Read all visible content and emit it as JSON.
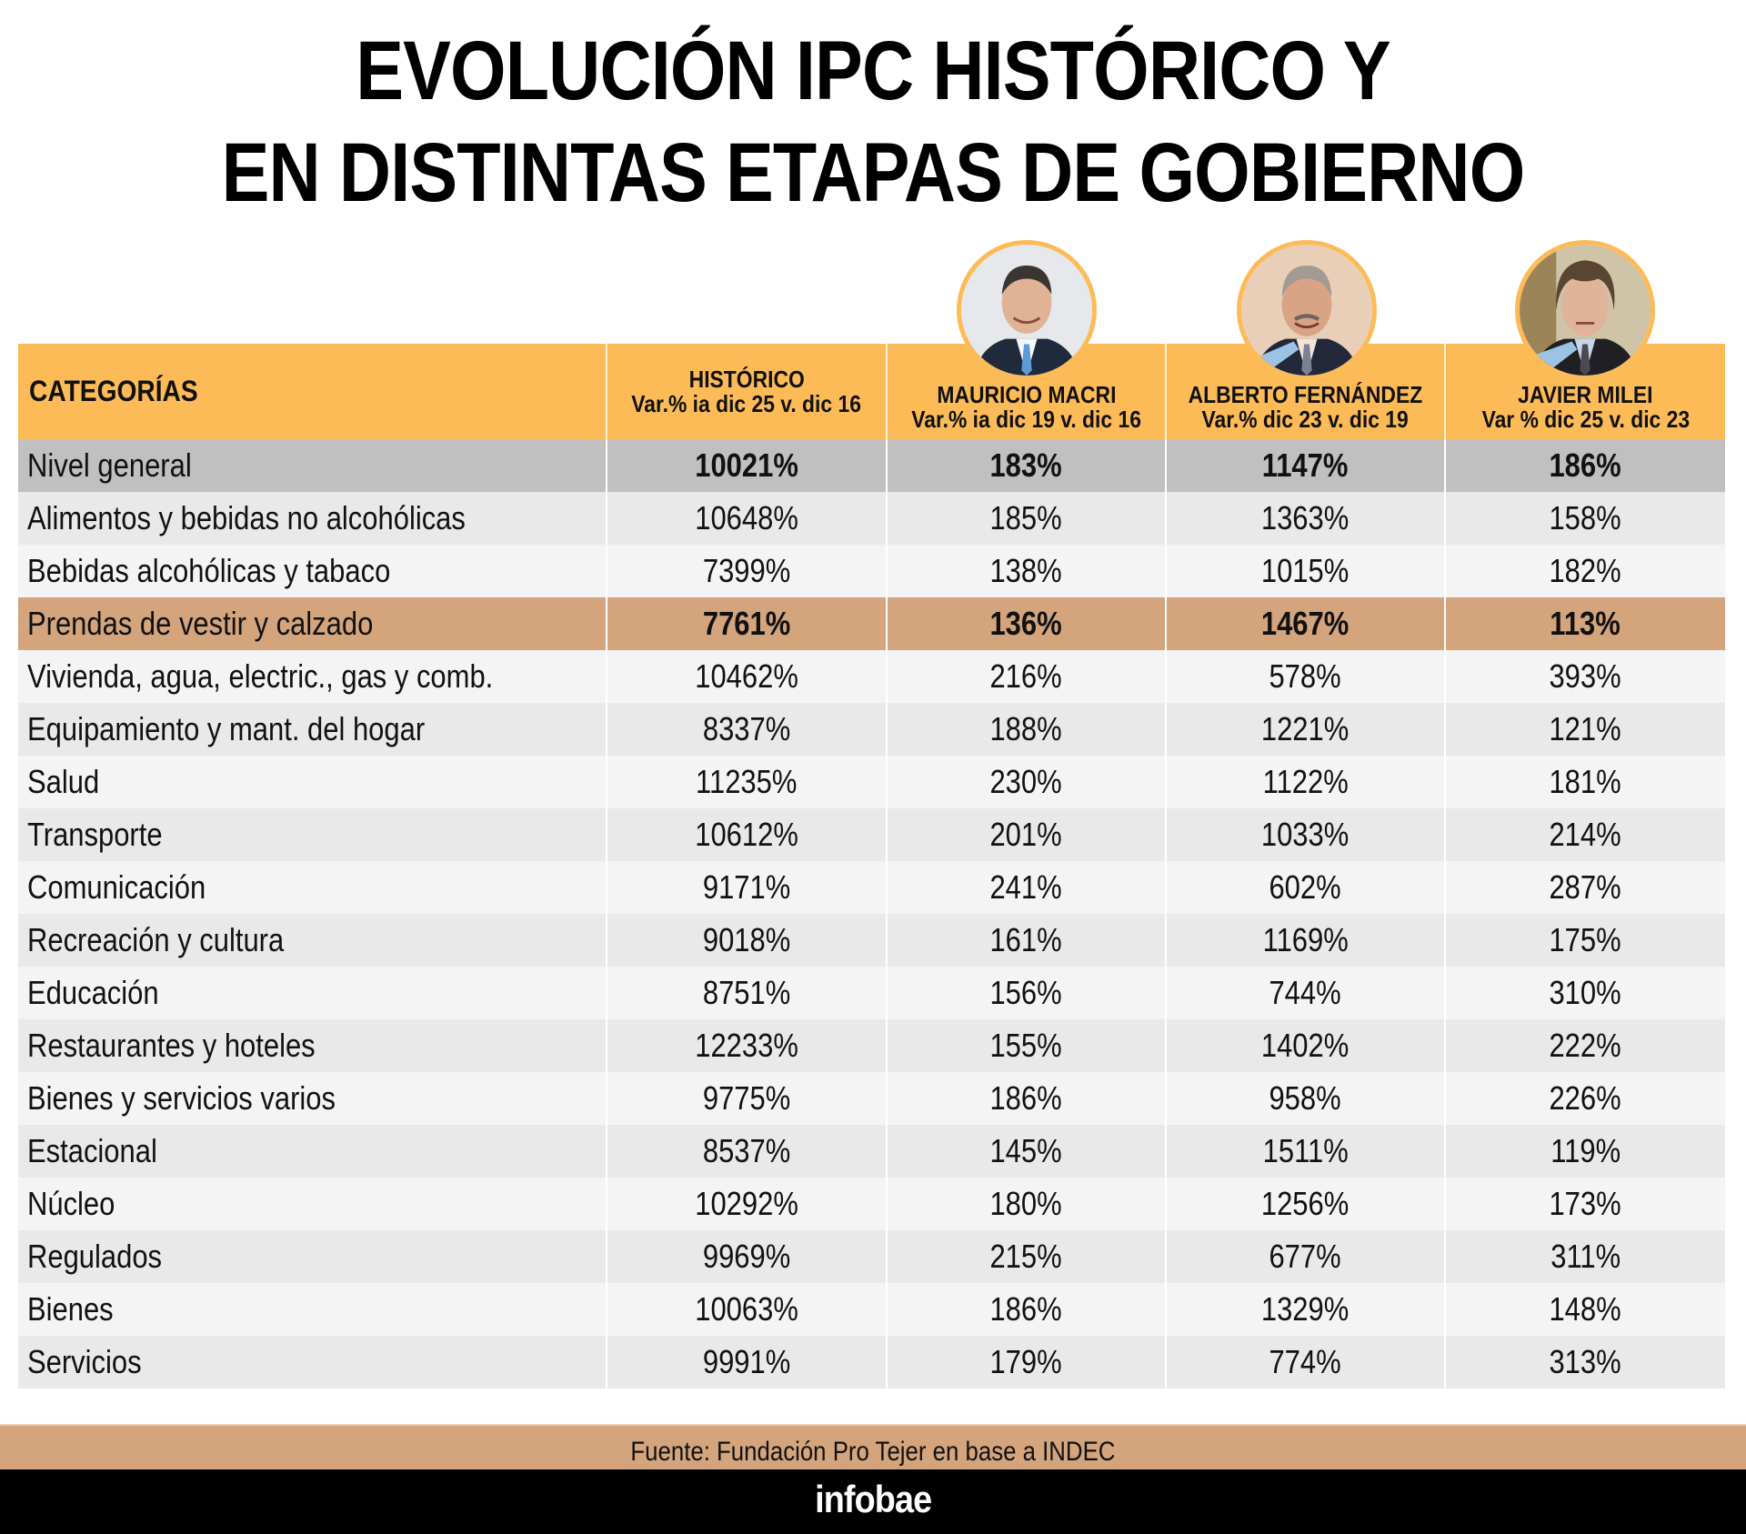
{
  "title": {
    "line1": "EVOLUCIÓN IPC HISTÓRICO Y",
    "line2": "EN DISTINTAS ETAPAS DE GOBIERNO"
  },
  "colors": {
    "header_bg": "#fdbb57",
    "total_row_bg": "#c0c0c0",
    "highlight_row_bg": "#d4a47d",
    "row_bg_a": "#e9e9e9",
    "row_bg_b": "#f4f4f4",
    "footer_bar": "#000000"
  },
  "table": {
    "headers": [
      {
        "title": "CATEGORÍAS",
        "subtitle": ""
      },
      {
        "title": "HISTÓRICO",
        "subtitle": "Var.% ia dic 25 v. dic 16"
      },
      {
        "title": "MAURICIO MACRI",
        "subtitle": "Var.% ia dic 19 v. dic 16",
        "portrait": "portrait-mauricio-macri"
      },
      {
        "title": "ALBERTO FERNÁNDEZ",
        "subtitle": "Var.% dic 23 v. dic 19",
        "portrait": "portrait-alberto-fernandez"
      },
      {
        "title": "JAVIER MILEI",
        "subtitle": "Var % dic 25 v. dic 23",
        "portrait": "portrait-javier-milei"
      }
    ],
    "rows": [
      {
        "label": "Nivel general",
        "values": [
          "10021%",
          "183%",
          "1147%",
          "186%"
        ],
        "style": "total"
      },
      {
        "label": "Alimentos y bebidas no alcohólicas",
        "values": [
          "10648%",
          "185%",
          "1363%",
          "158%"
        ],
        "style": "odd"
      },
      {
        "label": "Bebidas alcohólicas y tabaco",
        "values": [
          "7399%",
          "138%",
          "1015%",
          "182%"
        ],
        "style": "even"
      },
      {
        "label": "Prendas de vestir y calzado",
        "values": [
          "7761%",
          "136%",
          "1467%",
          "113%"
        ],
        "style": "highlight"
      },
      {
        "label": "Vivienda, agua, electric., gas y comb.",
        "values": [
          "10462%",
          "216%",
          "578%",
          "393%"
        ],
        "style": "even"
      },
      {
        "label": "Equipamiento y mant. del hogar",
        "values": [
          "8337%",
          "188%",
          "1221%",
          "121%"
        ],
        "style": "odd"
      },
      {
        "label": "Salud",
        "values": [
          "11235%",
          "230%",
          "1122%",
          "181%"
        ],
        "style": "even"
      },
      {
        "label": "Transporte",
        "values": [
          "10612%",
          "201%",
          "1033%",
          "214%"
        ],
        "style": "odd"
      },
      {
        "label": "Comunicación",
        "values": [
          "9171%",
          "241%",
          "602%",
          "287%"
        ],
        "style": "even"
      },
      {
        "label": "Recreación y cultura",
        "values": [
          "9018%",
          "161%",
          "1169%",
          "175%"
        ],
        "style": "odd"
      },
      {
        "label": "Educación",
        "values": [
          "8751%",
          "156%",
          "744%",
          "310%"
        ],
        "style": "even"
      },
      {
        "label": "Restaurantes y hoteles",
        "values": [
          "12233%",
          "155%",
          "1402%",
          "222%"
        ],
        "style": "odd"
      },
      {
        "label": "Bienes y servicios varios",
        "values": [
          "9775%",
          "186%",
          "958%",
          "226%"
        ],
        "style": "even"
      },
      {
        "label": "Estacional",
        "values": [
          "8537%",
          "145%",
          "1511%",
          "119%"
        ],
        "style": "odd"
      },
      {
        "label": "Núcleo",
        "values": [
          "10292%",
          "180%",
          "1256%",
          "173%"
        ],
        "style": "even"
      },
      {
        "label": "Regulados",
        "values": [
          "9969%",
          "215%",
          "677%",
          "311%"
        ],
        "style": "odd"
      },
      {
        "label": "Bienes",
        "values": [
          "10063%",
          "186%",
          "1329%",
          "148%"
        ],
        "style": "even"
      },
      {
        "label": "Servicios",
        "values": [
          "9991%",
          "179%",
          "774%",
          "313%"
        ],
        "style": "odd"
      }
    ]
  },
  "footer": {
    "source": "Fuente: Fundación Pro Tejer en base a INDEC",
    "brand": "infobae"
  }
}
